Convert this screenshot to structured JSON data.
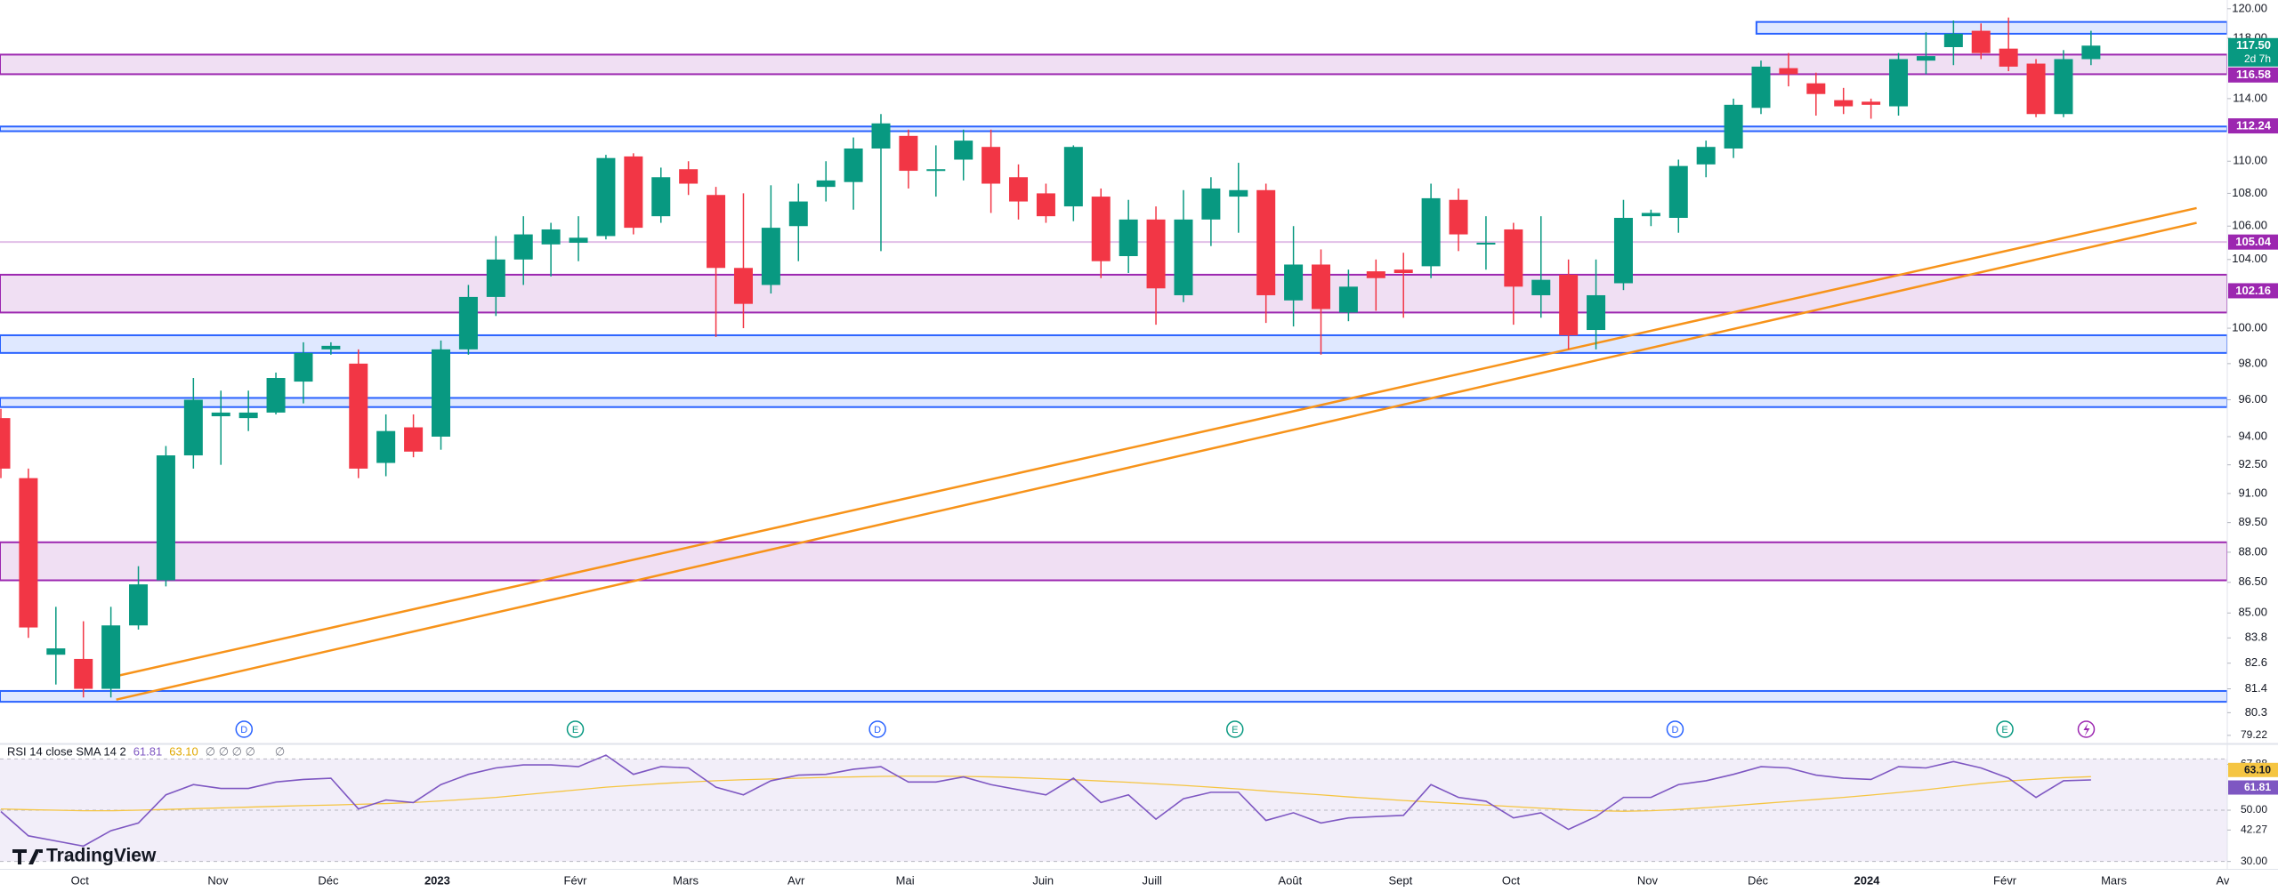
{
  "chart_data": {
    "type": "candlestick",
    "log_scale": true,
    "grid": false,
    "ylim": [
      78.9,
      120.6
    ],
    "yticks": [
      {
        "value": 120,
        "label": "120.00"
      },
      {
        "value": 118,
        "label": "118.00"
      },
      {
        "value": 114,
        "label": "114.00"
      },
      {
        "value": 110,
        "label": "110.00"
      },
      {
        "value": 108,
        "label": "108.00"
      },
      {
        "value": 106,
        "label": "106.00"
      },
      {
        "value": 104,
        "label": "104.00"
      },
      {
        "value": 100,
        "label": "100.00"
      },
      {
        "value": 98,
        "label": "98.00"
      },
      {
        "value": 96,
        "label": "96.00"
      },
      {
        "value": 94,
        "label": "94.00"
      },
      {
        "value": 92.5,
        "label": "92.50"
      },
      {
        "value": 91,
        "label": "91.00"
      },
      {
        "value": 89.5,
        "label": "89.50"
      },
      {
        "value": 88,
        "label": "88.00"
      },
      {
        "value": 86.5,
        "label": "86.50"
      },
      {
        "value": 85,
        "label": "85.00"
      },
      83.8,
      82.6,
      81.4,
      80.3
    ],
    "up_color": "#089981",
    "down_color": "#f23645",
    "candles": {
      "open": [
        95,
        91.8,
        83.0,
        82.8,
        81.4,
        84.4,
        86.6,
        93.0,
        95.1,
        95.0,
        95.3,
        97.0,
        98.8,
        98.0,
        92.6,
        94.5,
        94.0,
        98.8,
        101.8,
        104.0,
        104.9,
        105.0,
        105.4,
        110.3,
        106.6,
        109.5,
        107.9,
        103.5,
        102.5,
        106.0,
        108.4,
        108.7,
        110.8,
        111.6,
        109.5,
        110.1,
        110.9,
        109.0,
        108.0,
        107.2,
        107.8,
        104.2,
        106.4,
        101.9,
        106.4,
        107.8,
        108.2,
        101.6,
        103.7,
        100.9,
        103.3,
        103.4,
        103.6,
        107.6,
        105.0,
        105.8,
        101.9,
        103.1,
        99.9,
        102.6,
        106.6,
        106.5,
        109.8,
        110.8,
        113.4,
        116.0,
        115.0,
        113.9,
        113.8,
        113.5,
        116.5,
        117.4,
        118.5,
        117.3,
        116.3,
        113.0,
        116.6
      ],
      "high": [
        95.5,
        92.3,
        85.3,
        84.6,
        85.3,
        87.3,
        93.5,
        97.2,
        96.5,
        96.5,
        97.5,
        99.2,
        99.2,
        98.8,
        95.2,
        95.2,
        99.3,
        102.5,
        105.4,
        106.6,
        106.2,
        106.6,
        110.4,
        110.5,
        109.6,
        110.0,
        108.4,
        108.0,
        108.5,
        108.6,
        110.0,
        111.5,
        113.0,
        112.0,
        111.0,
        112.0,
        112.0,
        109.8,
        108.6,
        111.0,
        108.3,
        107.6,
        107.2,
        108.2,
        109.0,
        109.9,
        108.6,
        106.0,
        104.6,
        103.4,
        104.0,
        104.4,
        108.6,
        108.3,
        106.6,
        106.2,
        106.6,
        104.0,
        104.0,
        107.6,
        107.0,
        110.1,
        111.3,
        114.0,
        116.5,
        117.0,
        115.7,
        114.7,
        114.0,
        117.0,
        118.4,
        119.2,
        119.0,
        119.4,
        116.6,
        117.2,
        118.5
      ],
      "low": [
        91.8,
        83.8,
        81.6,
        81.0,
        81.0,
        84.2,
        86.3,
        92.3,
        92.5,
        94.3,
        95.2,
        95.8,
        98.5,
        91.8,
        91.9,
        92.9,
        93.3,
        98.5,
        100.7,
        102.5,
        103.0,
        103.9,
        105.2,
        105.5,
        106.2,
        107.9,
        99.5,
        100.0,
        102.0,
        103.9,
        107.5,
        107.0,
        104.5,
        108.3,
        107.8,
        108.8,
        106.8,
        106.4,
        106.2,
        106.3,
        102.9,
        103.2,
        100.2,
        101.5,
        104.8,
        105.6,
        100.3,
        100.1,
        98.5,
        100.4,
        101.0,
        100.6,
        102.9,
        104.5,
        103.4,
        100.2,
        100.6,
        98.8,
        98.8,
        102.2,
        106.0,
        105.6,
        109.0,
        110.2,
        113.0,
        114.8,
        112.9,
        113.0,
        112.7,
        112.9,
        115.6,
        116.2,
        116.6,
        115.8,
        112.8,
        112.8,
        116.2
      ],
      "close": [
        92.3,
        84.3,
        83.3,
        81.4,
        84.4,
        86.4,
        93.0,
        96.0,
        95.3,
        95.3,
        97.2,
        98.6,
        99.0,
        92.3,
        94.3,
        93.2,
        98.8,
        101.8,
        104.0,
        105.5,
        105.8,
        105.3,
        110.2,
        105.9,
        109.0,
        108.6,
        103.5,
        101.4,
        105.9,
        107.5,
        108.8,
        110.8,
        112.4,
        109.4,
        109.5,
        111.3,
        108.6,
        107.5,
        106.6,
        110.9,
        103.9,
        106.4,
        102.3,
        106.4,
        108.3,
        108.2,
        101.9,
        103.7,
        101.1,
        102.4,
        102.9,
        103.2,
        107.7,
        105.5,
        105.0,
        102.4,
        102.8,
        99.6,
        101.9,
        106.5,
        106.8,
        109.7,
        110.9,
        113.6,
        116.1,
        115.6,
        114.3,
        113.5,
        113.6,
        116.6,
        116.8,
        118.3,
        117.0,
        116.1,
        113.0,
        116.6,
        117.5
      ]
    },
    "x_labels": [
      "Oct",
      "Nov",
      "Déc",
      "2023",
      "Févr",
      "Mars",
      "Avr",
      "Mai",
      "Juin",
      "Juill",
      "Août",
      "Sept",
      "Oct",
      "Nov",
      "Déc",
      "2024",
      "Févr",
      "Mars",
      "Av"
    ],
    "zones": [
      {
        "top": 119.1,
        "bottom": 118.3,
        "color": "#2962ff"
      },
      {
        "top": 116.9,
        "bottom": 115.6,
        "color": "#9c27b0"
      },
      {
        "top": 112.2,
        "bottom": 111.9,
        "color": "#2962ff"
      },
      {
        "top": 103.1,
        "bottom": 100.9,
        "color": "#9c27b0"
      },
      {
        "top": 99.6,
        "bottom": 98.6,
        "color": "#2962ff"
      },
      {
        "top": 96.1,
        "bottom": 95.6,
        "color": "#2962ff"
      },
      {
        "top": 88.5,
        "bottom": 86.6,
        "color": "#9c27b0"
      },
      {
        "top": 81.3,
        "bottom": 80.8,
        "color": "#2962ff"
      }
    ],
    "levels": [
      {
        "value": 105.04,
        "color": "#e1bee7"
      }
    ],
    "trendlines": [
      {
        "color": "#f7931a",
        "values": [
          81.9,
          107.1
        ]
      },
      {
        "color": "#f7931a",
        "values": [
          80.9,
          106.2
        ]
      }
    ],
    "price_labels": [
      {
        "value": 117.5,
        "label": "117.50",
        "color": "#089981",
        "countdown": "2d 7h"
      },
      {
        "value": 116.58,
        "color": "#9c27b0"
      },
      {
        "value": 112.24,
        "color": "#9c27b0"
      },
      {
        "value": 105.04,
        "color": "#9c27b0"
      },
      {
        "value": 102.16,
        "color": "#9c27b0"
      }
    ],
    "events": [
      "D",
      "E",
      "D",
      "E",
      "D",
      "E"
    ],
    "indicator": {
      "title": "RSI 14 close SMA 14 2",
      "ylim": [
        27.1,
        75.7
      ],
      "yticks": [
        79.22,
        67.88,
        {
          "value": 50,
          "label": "50.00"
        },
        42.27,
        {
          "value": 30,
          "label": "30.00"
        }
      ],
      "band": [
        30,
        70
      ],
      "midline": 50,
      "placeholders": "∅ ∅ ∅ ∅",
      "placeholder": "∅",
      "series": [
        {
          "color": "#7e57c2",
          "last": 61.81,
          "values": [
            49.5,
            40,
            38,
            36,
            42,
            45,
            56,
            60,
            58.5,
            58.5,
            61,
            62,
            62.5,
            50.5,
            54,
            53,
            60,
            64,
            66.5,
            67.7,
            67.7,
            67,
            71.5,
            64,
            67,
            66.5,
            59,
            56,
            61.5,
            63.7,
            64,
            66,
            67,
            61,
            61,
            63,
            60,
            58,
            56,
            62.5,
            53,
            56,
            46.5,
            54.5,
            57,
            57,
            46,
            49,
            45,
            47,
            47.5,
            48,
            60,
            55,
            53.5,
            47,
            49,
            42.5,
            47.5,
            55,
            55,
            60,
            61.5,
            64,
            67,
            66.5,
            63.7,
            62.5,
            62,
            67,
            66.5,
            69,
            66.5,
            62.5,
            55,
            61.5,
            61.81
          ]
        },
        {
          "color": "#f5c542",
          "last": {
            "value": 63.1,
            "label": "63.10"
          },
          "values": [
            50.5,
            50.2,
            50.0,
            49.8,
            49.8,
            50.0,
            50.3,
            50.6,
            50.9,
            51.2,
            51.5,
            51.8,
            52.0,
            52.3,
            52.6,
            53.0,
            53.6,
            54.3,
            55.0,
            56.0,
            57.0,
            58.0,
            59.0,
            59.7,
            60.4,
            61.0,
            61.5,
            61.9,
            62.2,
            62.5,
            62.8,
            63.0,
            63.2,
            63.3,
            63.3,
            63.2,
            63.0,
            62.7,
            62.3,
            61.9,
            61.4,
            60.9,
            60.3,
            59.7,
            59.0,
            58.3,
            57.5,
            56.7,
            56.0,
            55.2,
            54.5,
            53.8,
            53.2,
            52.6,
            52.0,
            51.4,
            50.8,
            50.2,
            49.8,
            49.6,
            49.8,
            50.3,
            51.0,
            51.8,
            52.6,
            53.4,
            54.2,
            55.0,
            55.9,
            56.9,
            58.0,
            59.2,
            60.4,
            61.4,
            62.1,
            62.7,
            63.1
          ]
        }
      ]
    },
    "brand": "TradingView"
  }
}
